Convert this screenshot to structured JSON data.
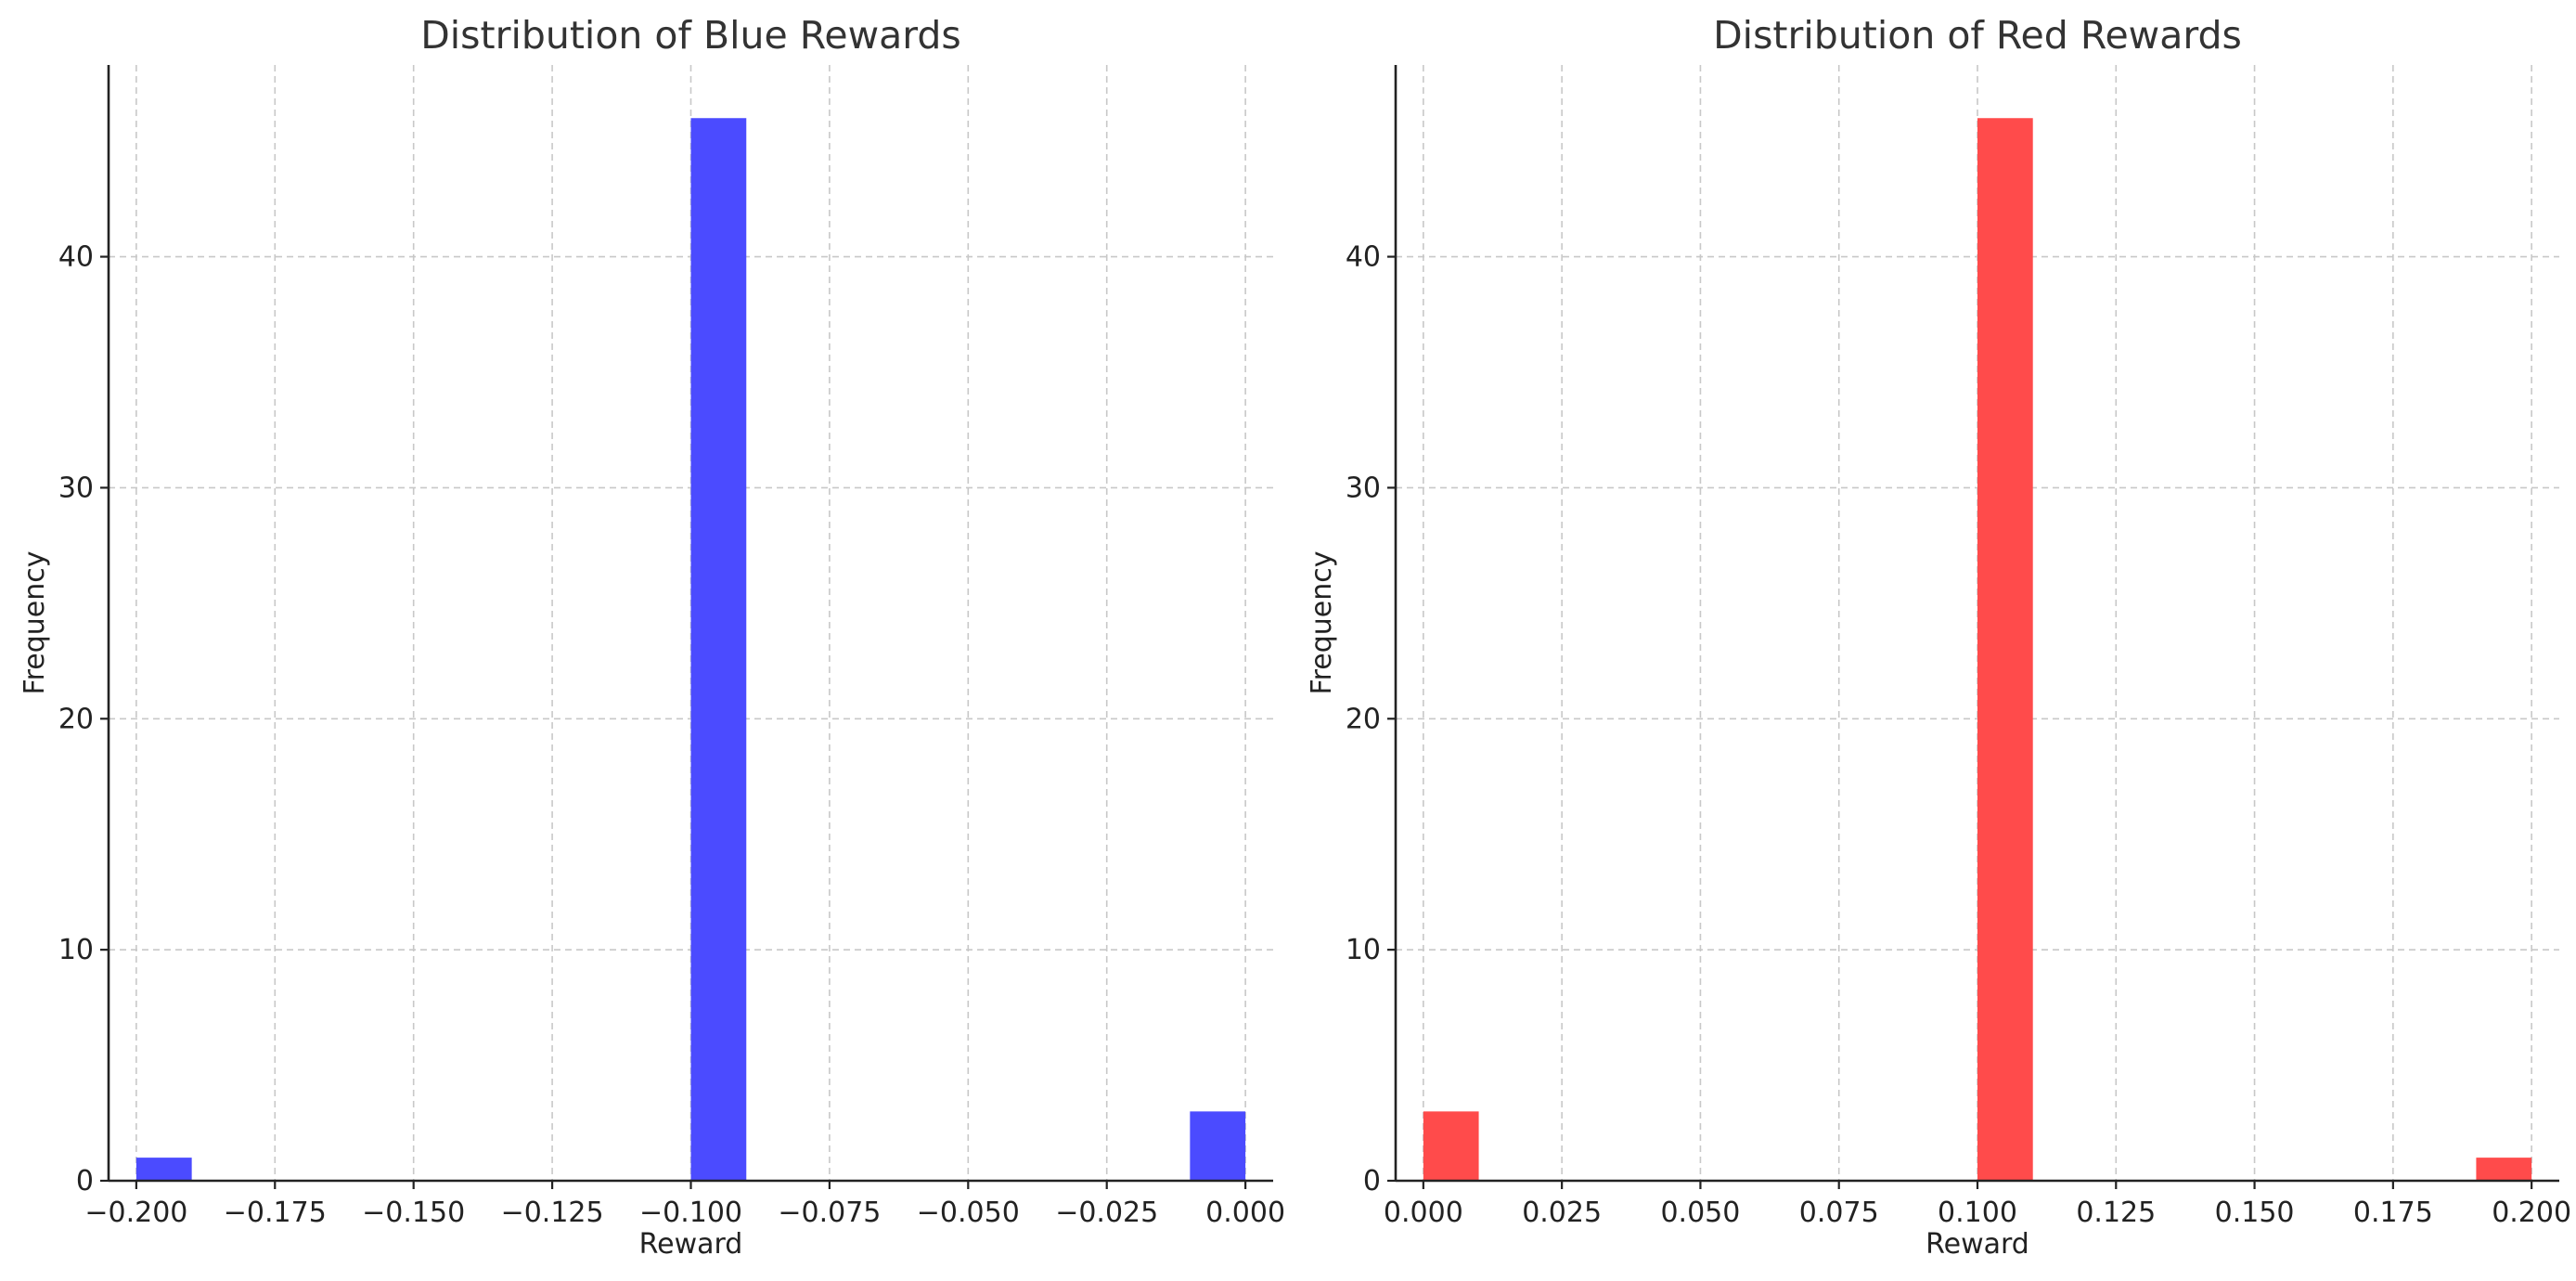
{
  "chart_data": [
    {
      "type": "bar",
      "title": "Distribution of Blue Rewards",
      "xlabel": "Reward",
      "ylabel": "Frequency",
      "color": "#4b4bff",
      "xlim": [
        -0.205,
        0.005
      ],
      "ylim": [
        0,
        48.3
      ],
      "bin_width": 0.01,
      "bars": [
        {
          "x_start": -0.2,
          "x_end": -0.19,
          "value": 1
        },
        {
          "x_start": -0.1,
          "x_end": -0.09,
          "value": 46
        },
        {
          "x_start": -0.01,
          "x_end": 0.0,
          "value": 3
        }
      ],
      "x_ticks": [
        -0.2,
        -0.175,
        -0.15,
        -0.125,
        -0.1,
        -0.075,
        -0.05,
        -0.025,
        0.0
      ],
      "x_tick_labels": [
        "−0.200",
        "−0.175",
        "−0.150",
        "−0.125",
        "−0.100",
        "−0.075",
        "−0.050",
        "−0.025",
        "0.000"
      ],
      "y_ticks": [
        0,
        10,
        20,
        30,
        40
      ],
      "y_tick_labels": [
        "0",
        "10",
        "20",
        "30",
        "40"
      ],
      "grid": true
    },
    {
      "type": "bar",
      "title": "Distribution of Red Rewards",
      "xlabel": "Reward",
      "ylabel": "Frequency",
      "color": "#ff4b4b",
      "xlim": [
        -0.005,
        0.205
      ],
      "ylim": [
        0,
        48.3
      ],
      "bin_width": 0.01,
      "bars": [
        {
          "x_start": 0.0,
          "x_end": 0.01,
          "value": 3
        },
        {
          "x_start": 0.1,
          "x_end": 0.11,
          "value": 46
        },
        {
          "x_start": 0.19,
          "x_end": 0.2,
          "value": 1
        }
      ],
      "x_ticks": [
        0.0,
        0.025,
        0.05,
        0.075,
        0.1,
        0.125,
        0.15,
        0.175,
        0.2
      ],
      "x_tick_labels": [
        "0.000",
        "0.025",
        "0.050",
        "0.075",
        "0.100",
        "0.125",
        "0.150",
        "0.175",
        "0.200"
      ],
      "y_ticks": [
        0,
        10,
        20,
        30,
        40
      ],
      "y_tick_labels": [
        "0",
        "10",
        "20",
        "30",
        "40"
      ],
      "grid": true
    }
  ]
}
